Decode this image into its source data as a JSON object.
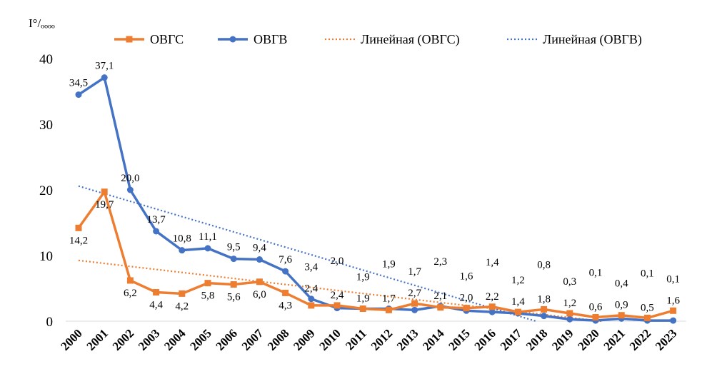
{
  "chart_data": {
    "type": "line",
    "ylabel": "I°/ₒₒₒₒ",
    "categories": [
      "2000",
      "2001",
      "2002",
      "2003",
      "2004",
      "2005",
      "2006",
      "2007",
      "2008",
      "2009",
      "2010",
      "2011",
      "2012",
      "2013",
      "2014",
      "2015",
      "2016",
      "2017",
      "2018",
      "2019",
      "2020",
      "2021",
      "2022",
      "2023"
    ],
    "ylim": [
      0,
      40
    ],
    "yticks": [
      "0",
      "10",
      "20",
      "30",
      "40"
    ],
    "grid": false,
    "legend_position": "top",
    "series": [
      {
        "name": "ОВГС",
        "color": "#ED7D31",
        "marker": "square",
        "values": [
          14.2,
          19.7,
          6.2,
          4.4,
          4.2,
          5.8,
          5.6,
          6.0,
          4.3,
          2.4,
          2.4,
          1.9,
          1.7,
          2.7,
          2.1,
          2.0,
          2.2,
          1.4,
          1.8,
          1.2,
          0.6,
          0.9,
          0.5,
          1.6
        ],
        "labels": [
          "14,2",
          "19,7",
          "6,2",
          "4,4",
          "4,2",
          "5,8",
          "5,6",
          "6,0",
          "4,3",
          "2,4",
          "2,4",
          "1,9",
          "1,7",
          "2,7",
          "2,1",
          "2,0",
          "2,2",
          "1,4",
          "1,8",
          "1,2",
          "0,6",
          "0,9",
          "0,5",
          "1,6"
        ]
      },
      {
        "name": "ОВГВ",
        "color": "#4472C4",
        "marker": "circle",
        "values": [
          34.5,
          37.1,
          20.0,
          13.7,
          10.8,
          11.1,
          9.5,
          9.4,
          7.6,
          3.4,
          2.0,
          1.9,
          1.9,
          1.7,
          2.3,
          1.6,
          1.4,
          1.2,
          0.8,
          0.3,
          0.1,
          0.4,
          0.1,
          0.1
        ],
        "labels": [
          "34,5",
          "37,1",
          "20,0",
          "13,7",
          "10,8",
          "11,1",
          "9,5",
          "9,4",
          "7,6",
          "3,4",
          "2,0",
          "1,9",
          "1,9",
          "1,7",
          "2,3",
          "1,6",
          "1,4",
          "1,2",
          "0,8",
          "0,3",
          "0,1",
          "0,4",
          "0,1",
          "0,1"
        ]
      }
    ],
    "trendlines": [
      {
        "name": "Линейная (ОВГС)",
        "color": "#ED7D31",
        "style": "dotted",
        "of": "ОВГС"
      },
      {
        "name": "Линейная (ОВГВ)",
        "color": "#4472C4",
        "style": "dotted",
        "of": "ОВГВ"
      }
    ]
  }
}
